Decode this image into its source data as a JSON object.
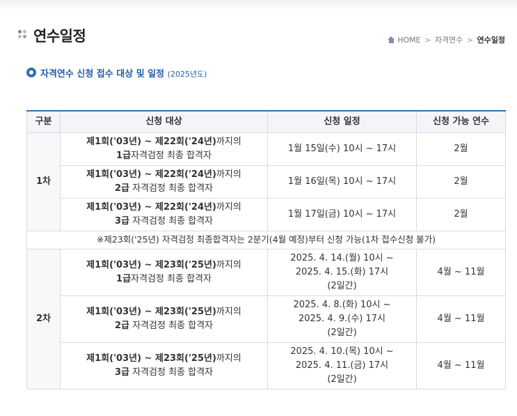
{
  "header": {
    "title": "연수일정",
    "breadcrumb": {
      "home": "HOME",
      "sep": ">",
      "middle": "자격연수",
      "current": "연수일정"
    }
  },
  "section": {
    "title": "자격연수 신청 접수 대상 및 일정",
    "year": "(2025년도)"
  },
  "table": {
    "columns": [
      "구분",
      "신청 대상",
      "신청 일정",
      "신청 가능 연수"
    ],
    "groups": [
      {
        "label": "1차",
        "rows": [
          {
            "range": "제1회('03년) ~ 제22회('24년)",
            "suffix": "까지의",
            "grade": "1급",
            "desc": "자격검정 최종 합격자",
            "schedule": [
              "1월 15일(수) 10시 ~ 17시"
            ],
            "period": "2월"
          },
          {
            "range": "제1회('03년) ~ 제22회('24년)",
            "suffix": "까지의",
            "grade": "2급",
            "desc": " 자격검정 최종 합격자",
            "schedule": [
              "1월 16일(목) 10시 ~ 17시"
            ],
            "period": "2월"
          },
          {
            "range": "제1회('03년) ~ 제22회('24년)",
            "suffix": "까지의",
            "grade": "3급",
            "desc": " 자격검정 최종 합격자",
            "schedule": [
              "1월 17일(금) 10시 ~ 17시"
            ],
            "period": "2월"
          }
        ]
      },
      {
        "label": "2차",
        "rows": [
          {
            "range": "제1회('03년) ~ 제23회('25년)",
            "suffix": "까지의",
            "grade": "1급",
            "desc": "자격검정 최종 합격자",
            "schedule": [
              "2025. 4. 14.(월) 10시 ~",
              "2025. 4. 15.(화) 17시",
              "(2일간)"
            ],
            "period": "4월 ~ 11월"
          },
          {
            "range": "제1회('03년) ~ 제23회('25년)",
            "suffix": "까지의",
            "grade": "2급",
            "desc": " 자격검정 최종 합격자",
            "schedule": [
              "2025. 4. 8.(화) 10시 ~",
              "2025. 4. 9.(수) 17시",
              "(2일간)"
            ],
            "period": "4월 ~ 11월"
          },
          {
            "range": "제1회('03년) ~ 제23회('25년)",
            "suffix": "까지의",
            "grade": "3급",
            "desc": " 자격검정 최종 합격자",
            "schedule": [
              "2025. 4. 10.(목) 10시 ~",
              "2025. 4. 11.(금) 17시",
              "(2일간)"
            ],
            "period": "4월 ~ 11월"
          }
        ]
      }
    ],
    "note": "※제23회('25년) 자격검정 최종합격자는 2분기(4월 예정)부터 신청 가능(1차 접수신청 불가)"
  }
}
